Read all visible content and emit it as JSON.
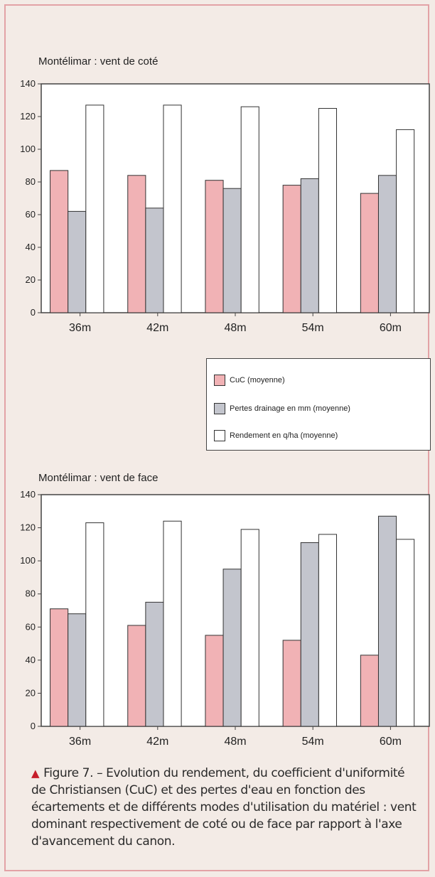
{
  "chart_data": [
    {
      "type": "bar",
      "title": "Montélimar : vent de coté",
      "categories": [
        "36m",
        "42m",
        "48m",
        "54m",
        "60m"
      ],
      "ylim": [
        0,
        140
      ],
      "yticks": [
        0,
        20,
        40,
        60,
        80,
        100,
        120,
        140
      ],
      "series": [
        {
          "name": "CuC  (moyenne)",
          "color": "#f1b2b5",
          "values": [
            87,
            84,
            81,
            78,
            73
          ]
        },
        {
          "name": "Pertes drainage en mm (moyenne)",
          "color": "#c3c5cd",
          "values": [
            62,
            64,
            76,
            82,
            84
          ]
        },
        {
          "name": "Rendement en q/ha (moyenne)",
          "color": "#ffffff",
          "values": [
            127,
            127,
            126,
            125,
            112
          ]
        }
      ]
    },
    {
      "type": "bar",
      "title": "Montélimar : vent de face",
      "categories": [
        "36m",
        "42m",
        "48m",
        "54m",
        "60m"
      ],
      "ylim": [
        0,
        140
      ],
      "yticks": [
        0,
        20,
        40,
        60,
        80,
        100,
        120,
        140
      ],
      "series": [
        {
          "name": "CuC  (moyenne)",
          "color": "#f1b2b5",
          "values": [
            71,
            61,
            55,
            52,
            43
          ]
        },
        {
          "name": "Pertes drainage en mm (moyenne)",
          "color": "#c3c5cd",
          "values": [
            68,
            75,
            95,
            111,
            127
          ]
        },
        {
          "name": "Rendement en q/ha (moyenne)",
          "color": "#ffffff",
          "values": [
            123,
            124,
            119,
            116,
            113
          ]
        }
      ]
    }
  ],
  "legend": {
    "items": [
      {
        "label": "CuC  (moyenne)",
        "color": "#f1b2b5"
      },
      {
        "label": "Pertes drainage en mm (moyenne)",
        "color": "#c3c5cd"
      },
      {
        "label": "Rendement en q/ha (moyenne)",
        "color": "#ffffff"
      }
    ]
  },
  "caption": {
    "icon": "triangle-icon",
    "text": "Figure 7. – Evolution du rendement, du coefficient d'uniformité de Christiansen (CuC) et des pertes d'eau en fonction des écartements et de différents modes d'utilisation du matériel : vent dominant respectivement de coté ou de face par rapport à l'axe d'avancement du canon."
  }
}
